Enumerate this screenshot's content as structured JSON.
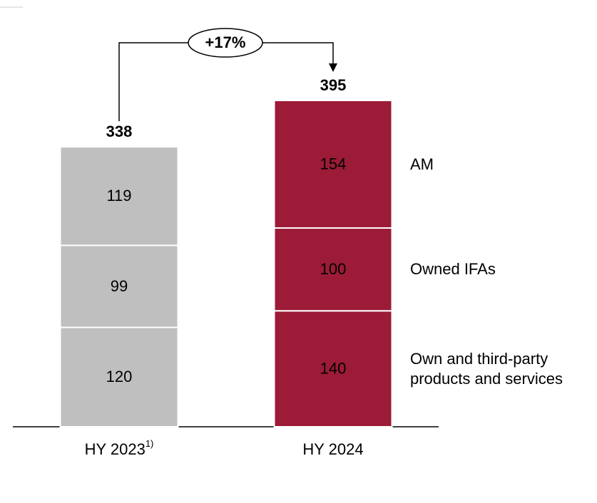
{
  "chart_data": {
    "type": "stacked_bar",
    "categories": [
      "HY 2023",
      "HY 2024"
    ],
    "category_notes": [
      "1)",
      null
    ],
    "bar_colors": [
      "#bfbfbf",
      "#9c1b37"
    ],
    "series": [
      {
        "name": "Own and third-party products and services",
        "values": [
          120,
          140
        ]
      },
      {
        "name": "Owned IFAs",
        "values": [
          99,
          100
        ]
      },
      {
        "name": "AM",
        "values": [
          119,
          154
        ]
      }
    ],
    "totals": [
      338,
      395
    ],
    "annotation": "+17%"
  }
}
